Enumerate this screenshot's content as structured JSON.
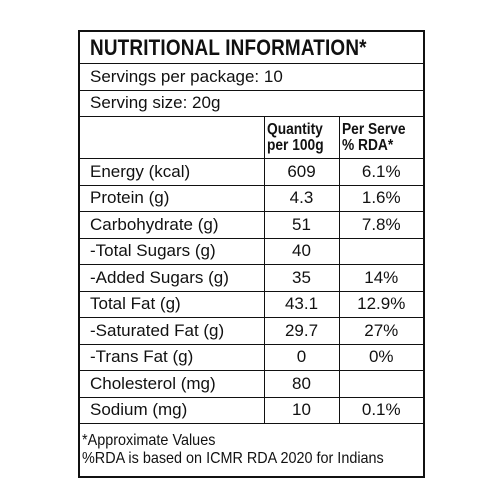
{
  "title": "NUTRITIONAL INFORMATION*",
  "servings": "Servings per package: 10",
  "serving_size": "Serving size: 20g",
  "header": {
    "quantity": [
      "Quantity",
      "per 100g"
    ],
    "rda": [
      "Per Serve",
      "% RDA*"
    ]
  },
  "rows": [
    {
      "name": "Energy (kcal)",
      "quantity": "609",
      "rda": "6.1%"
    },
    {
      "name": "Protein (g)",
      "quantity": "4.3",
      "rda": "1.6%"
    },
    {
      "name": "Carbohydrate (g)",
      "quantity": "51",
      "rda": "7.8%"
    },
    {
      "name": "-Total Sugars (g)",
      "quantity": "40",
      "rda": null
    },
    {
      "name": "-Added Sugars (g)",
      "quantity": "35",
      "rda": "14%"
    },
    {
      "name": "Total Fat (g)",
      "quantity": "43.1",
      "rda": "12.9%"
    },
    {
      "name": "-Saturated Fat (g)",
      "quantity": "29.7",
      "rda": "27%"
    },
    {
      "name": "-Trans Fat (g)",
      "quantity": "0",
      "rda": "0%"
    },
    {
      "name": "Cholesterol (mg)",
      "quantity": "80",
      "rda": null
    },
    {
      "name": "Sodium (mg)",
      "quantity": "10",
      "rda": "0.1%"
    }
  ],
  "footer": [
    "*Approximate Values",
    "%RDA is based on ICMR RDA 2020 for Indians"
  ]
}
